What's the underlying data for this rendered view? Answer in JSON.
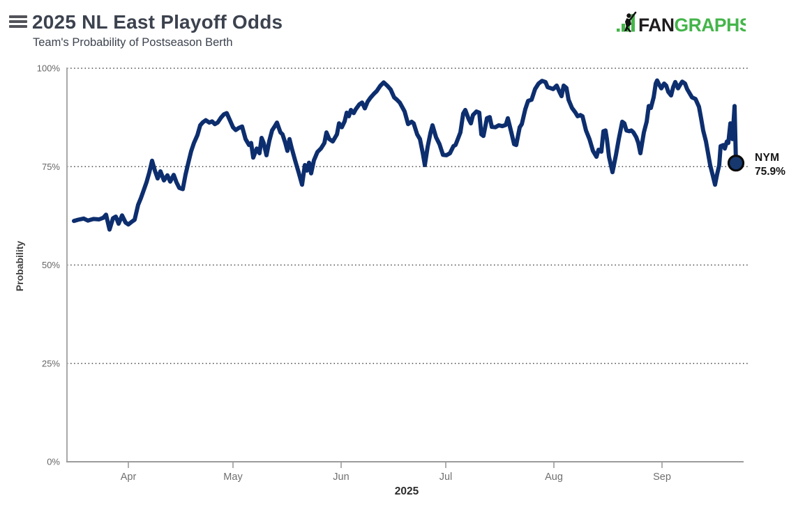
{
  "header": {
    "title": "2025 NL East Playoff Odds",
    "subtitle": "Team's Probability of Postseason Berth",
    "logo": {
      "fan": "FAN",
      "graphs": "GRAPHS",
      "green": "#44b54a",
      "dark": "#1f1c1d"
    }
  },
  "colors": {
    "line": "#0d2e6e",
    "marker_fill": "#16386f",
    "marker_stroke": "#0a0a0a",
    "grid": "#474747",
    "axis": "#9b9b9b",
    "tick_label": "#666666",
    "month_label": "#6f6f6f"
  },
  "chart_data": {
    "type": "line",
    "title": "2025 NL East Playoff Odds",
    "subtitle": "Team's Probability of Postseason Berth",
    "xlabel": "2025",
    "ylabel": "Probability",
    "ylim": [
      0,
      100
    ],
    "grid": "horizontal dotted at 0/25/50/75/100",
    "legend_position": "end-of-line label",
    "x_domain": {
      "start": "2025-03-16",
      "end": "2025-09-22",
      "unit": "days",
      "span": 189.8
    },
    "y_ticks": [
      {
        "label": "100%",
        "value": 100
      },
      {
        "label": "75%",
        "value": 75
      },
      {
        "label": "50%",
        "value": 50
      },
      {
        "label": "25%",
        "value": 25
      },
      {
        "label": "0%",
        "value": 0
      }
    ],
    "x_ticks": [
      {
        "label": "Apr",
        "day": 15.6
      },
      {
        "label": "May",
        "day": 45.6
      },
      {
        "label": "Jun",
        "day": 76.6
      },
      {
        "label": "Jul",
        "day": 106.6
      },
      {
        "label": "Aug",
        "day": 137.6
      },
      {
        "label": "Sep",
        "day": 168.6
      }
    ],
    "series": [
      {
        "name": "NYM",
        "color": "#0d2e6e",
        "end_label": {
          "team": "NYM",
          "value": "75.9%"
        },
        "final_value": 75.9,
        "points": [
          [
            0,
            61.2
          ],
          [
            1.2,
            61.5
          ],
          [
            2.8,
            61.8
          ],
          [
            4,
            61.3
          ],
          [
            5.6,
            61.7
          ],
          [
            7.2,
            61.6
          ],
          [
            8.4,
            62
          ],
          [
            9.2,
            62.8
          ],
          [
            10.2,
            59
          ],
          [
            11.2,
            61.9
          ],
          [
            12,
            62.3
          ],
          [
            12.8,
            60.5
          ],
          [
            13.8,
            62.6
          ],
          [
            14.8,
            60.8
          ],
          [
            15.6,
            60.3
          ],
          [
            16.6,
            61
          ],
          [
            17.4,
            61.5
          ],
          [
            18.4,
            65.3
          ],
          [
            19.2,
            67
          ],
          [
            20,
            69
          ],
          [
            20.8,
            71
          ],
          [
            21.6,
            73.5
          ],
          [
            22.4,
            76.5
          ],
          [
            23.2,
            74
          ],
          [
            24,
            72
          ],
          [
            24.8,
            73.8
          ],
          [
            25.8,
            71.5
          ],
          [
            26.8,
            72.8
          ],
          [
            27.6,
            71.2
          ],
          [
            28.6,
            72.9
          ],
          [
            29.4,
            71
          ],
          [
            30.2,
            69.6
          ],
          [
            31.2,
            69.3
          ],
          [
            32,
            73
          ],
          [
            32.8,
            76
          ],
          [
            33.6,
            78.9
          ],
          [
            34.4,
            81
          ],
          [
            35.4,
            83
          ],
          [
            36.2,
            85.5
          ],
          [
            37,
            86.3
          ],
          [
            37.8,
            86.8
          ],
          [
            38.8,
            86.2
          ],
          [
            39.6,
            86.5
          ],
          [
            40.4,
            85.8
          ],
          [
            41.2,
            86.2
          ],
          [
            42.2,
            87.5
          ],
          [
            43,
            88.3
          ],
          [
            43.8,
            88.6
          ],
          [
            44.6,
            87
          ],
          [
            45.6,
            85
          ],
          [
            46.4,
            84.3
          ],
          [
            47.2,
            84.8
          ],
          [
            48.2,
            85.2
          ],
          [
            49.2,
            82
          ],
          [
            50.2,
            80.5
          ],
          [
            50.8,
            81
          ],
          [
            51.4,
            77.3
          ],
          [
            52.4,
            79.6
          ],
          [
            53.2,
            78.4
          ],
          [
            53.8,
            82.3
          ],
          [
            54.4,
            81
          ],
          [
            55.2,
            77.9
          ],
          [
            56,
            81.5
          ],
          [
            56.8,
            84.2
          ],
          [
            57.6,
            85.3
          ],
          [
            58.2,
            86.2
          ],
          [
            59.2,
            83.7
          ],
          [
            59.8,
            83.2
          ],
          [
            60.6,
            81
          ],
          [
            61.2,
            79
          ],
          [
            61.8,
            82
          ],
          [
            62.4,
            79.8
          ],
          [
            63.4,
            76.6
          ],
          [
            64.4,
            73.6
          ],
          [
            65.4,
            70.4
          ],
          [
            66.2,
            75.4
          ],
          [
            66.8,
            74
          ],
          [
            67.4,
            76
          ],
          [
            68,
            73.3
          ],
          [
            68.8,
            76.6
          ],
          [
            69.8,
            78.7
          ],
          [
            70.8,
            79.6
          ],
          [
            71.8,
            81
          ],
          [
            72.4,
            83.7
          ],
          [
            73.2,
            82
          ],
          [
            74.2,
            81.4
          ],
          [
            75.4,
            83.2
          ],
          [
            76,
            86
          ],
          [
            76.8,
            85
          ],
          [
            77.6,
            86.5
          ],
          [
            78.2,
            88.7
          ],
          [
            78.8,
            87.8
          ],
          [
            79.4,
            89.4
          ],
          [
            80.2,
            88.6
          ],
          [
            80.8,
            89.6
          ],
          [
            81.8,
            90.8
          ],
          [
            82.6,
            91.3
          ],
          [
            83.4,
            89.8
          ],
          [
            84.2,
            91.5
          ],
          [
            85,
            92.5
          ],
          [
            86,
            93.5
          ],
          [
            86.8,
            94.2
          ],
          [
            87.8,
            95.5
          ],
          [
            88.8,
            96.4
          ],
          [
            89.8,
            95.6
          ],
          [
            90.8,
            94.6
          ],
          [
            91.8,
            92.6
          ],
          [
            92.6,
            92
          ],
          [
            93.4,
            91.3
          ],
          [
            94.2,
            90
          ],
          [
            94.8,
            89
          ],
          [
            95.8,
            85.8
          ],
          [
            96.8,
            86.4
          ],
          [
            97.4,
            86
          ],
          [
            98.4,
            83.2
          ],
          [
            99.2,
            82
          ],
          [
            100,
            78.5
          ],
          [
            100.6,
            75.4
          ],
          [
            101.4,
            80
          ],
          [
            102.2,
            83.5
          ],
          [
            102.8,
            85.5
          ],
          [
            103.8,
            82.5
          ],
          [
            104.8,
            80.7
          ],
          [
            105.8,
            78
          ],
          [
            106.8,
            77.9
          ],
          [
            107.8,
            78.4
          ],
          [
            108.8,
            80.2
          ],
          [
            109.4,
            80.5
          ],
          [
            110.8,
            83.7
          ],
          [
            111.6,
            88.5
          ],
          [
            112.2,
            89.4
          ],
          [
            113.2,
            87
          ],
          [
            113.8,
            86
          ],
          [
            114.4,
            88.1
          ],
          [
            115.4,
            89
          ],
          [
            116.2,
            88.7
          ],
          [
            116.8,
            83.2
          ],
          [
            117.4,
            82.8
          ],
          [
            118.4,
            87.3
          ],
          [
            119.2,
            87.6
          ],
          [
            119.8,
            85.1
          ],
          [
            120.8,
            85
          ],
          [
            121.8,
            85.5
          ],
          [
            122.8,
            85.3
          ],
          [
            123.8,
            85.6
          ],
          [
            124.4,
            87.3
          ],
          [
            125.4,
            83.7
          ],
          [
            126.2,
            80.7
          ],
          [
            126.8,
            80.5
          ],
          [
            127.8,
            85
          ],
          [
            128.4,
            85.8
          ],
          [
            129.4,
            89.6
          ],
          [
            130.2,
            91.7
          ],
          [
            131.2,
            92
          ],
          [
            132.2,
            94.7
          ],
          [
            133.2,
            96.1
          ],
          [
            134.2,
            96.8
          ],
          [
            135.2,
            96.5
          ],
          [
            135.8,
            95.2
          ],
          [
            136.8,
            94.9
          ],
          [
            137.4,
            94.7
          ],
          [
            138.4,
            95.6
          ],
          [
            139.2,
            94
          ],
          [
            139.8,
            92.9
          ],
          [
            140.4,
            95.6
          ],
          [
            141.2,
            95
          ],
          [
            141.8,
            92
          ],
          [
            142.8,
            89.9
          ],
          [
            143.8,
            88.7
          ],
          [
            144.4,
            87.8
          ],
          [
            145.2,
            88.1
          ],
          [
            145.8,
            87.8
          ],
          [
            146.8,
            84.2
          ],
          [
            147.8,
            82
          ],
          [
            148.8,
            79
          ],
          [
            149.8,
            77.5
          ],
          [
            150.4,
            79.3
          ],
          [
            151.2,
            78.8
          ],
          [
            151.8,
            84
          ],
          [
            152.4,
            84.2
          ],
          [
            152.8,
            82
          ],
          [
            153.4,
            77.5
          ],
          [
            154.4,
            73.6
          ],
          [
            155.4,
            78
          ],
          [
            156.2,
            82
          ],
          [
            157.2,
            86.4
          ],
          [
            157.8,
            86
          ],
          [
            158.4,
            84.2
          ],
          [
            159.2,
            84
          ],
          [
            159.8,
            84.2
          ],
          [
            160.4,
            83.7
          ],
          [
            161.2,
            82.5
          ],
          [
            161.8,
            81
          ],
          [
            162.4,
            78.4
          ],
          [
            163.4,
            83.7
          ],
          [
            164.2,
            86.4
          ],
          [
            164.8,
            90.4
          ],
          [
            165.4,
            89.9
          ],
          [
            166.2,
            92.6
          ],
          [
            166.8,
            96.1
          ],
          [
            167.2,
            96.9
          ],
          [
            167.8,
            95.8
          ],
          [
            168.4,
            94.9
          ],
          [
            169.2,
            96.1
          ],
          [
            169.8,
            95.6
          ],
          [
            170.4,
            94
          ],
          [
            171.2,
            93.1
          ],
          [
            171.8,
            95.2
          ],
          [
            172.4,
            96.5
          ],
          [
            173.2,
            94.9
          ],
          [
            173.8,
            95.8
          ],
          [
            174.4,
            96.6
          ],
          [
            175.2,
            96.1
          ],
          [
            175.8,
            94.7
          ],
          [
            176.4,
            93.8
          ],
          [
            177.2,
            92.6
          ],
          [
            178.2,
            92.2
          ],
          [
            179.2,
            90.2
          ],
          [
            179.8,
            87.3
          ],
          [
            180.4,
            84.2
          ],
          [
            181.2,
            81.4
          ],
          [
            181.8,
            78.4
          ],
          [
            182.4,
            75.4
          ],
          [
            183.2,
            72.6
          ],
          [
            183.8,
            70.4
          ],
          [
            184.4,
            73.1
          ],
          [
            185,
            75.4
          ],
          [
            185.4,
            80.2
          ],
          [
            186.2,
            80.5
          ],
          [
            186.6,
            79.6
          ],
          [
            187.2,
            81.4
          ],
          [
            187.6,
            81
          ],
          [
            188.2,
            86
          ],
          [
            188.6,
            83.2
          ],
          [
            188.8,
            82
          ],
          [
            189.4,
            90.4
          ],
          [
            189.8,
            75.9
          ]
        ]
      }
    ]
  }
}
